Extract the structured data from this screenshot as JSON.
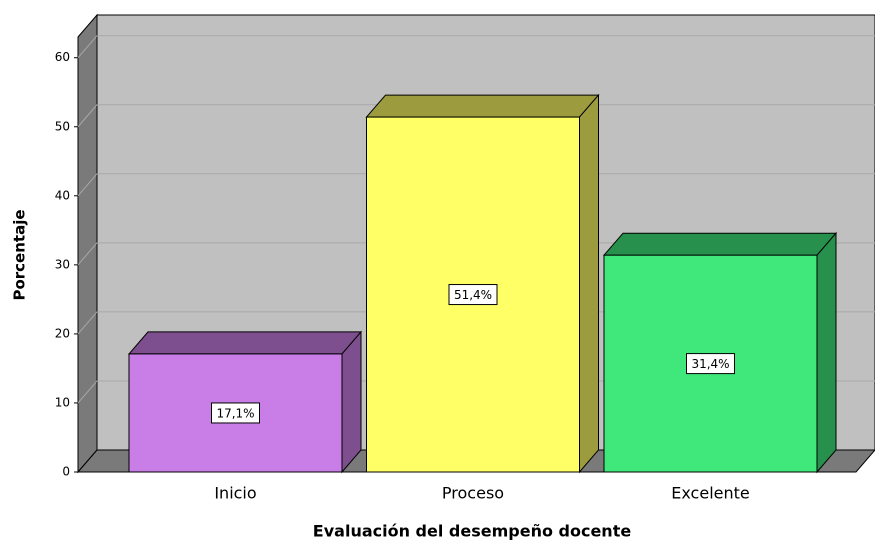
{
  "chart_data": {
    "type": "bar3d",
    "xlabel": "Evaluación del desempeño docente",
    "ylabel": "Porcentaje",
    "categories": [
      "Inicio",
      "Proceso",
      "Excelente"
    ],
    "values": [
      17.1,
      51.4,
      31.4
    ],
    "value_labels": [
      "17,1%",
      "51,4%",
      "31,4%"
    ],
    "colors": [
      "#c87ee6",
      "#ffff66",
      "#40e87c"
    ],
    "side_colors": [
      "#7e4f8f",
      "#9c9c3e",
      "#27904c"
    ],
    "ylim": [
      0,
      63
    ],
    "yticks": [
      0,
      10,
      20,
      30,
      40,
      50,
      60
    ],
    "grid": true
  }
}
